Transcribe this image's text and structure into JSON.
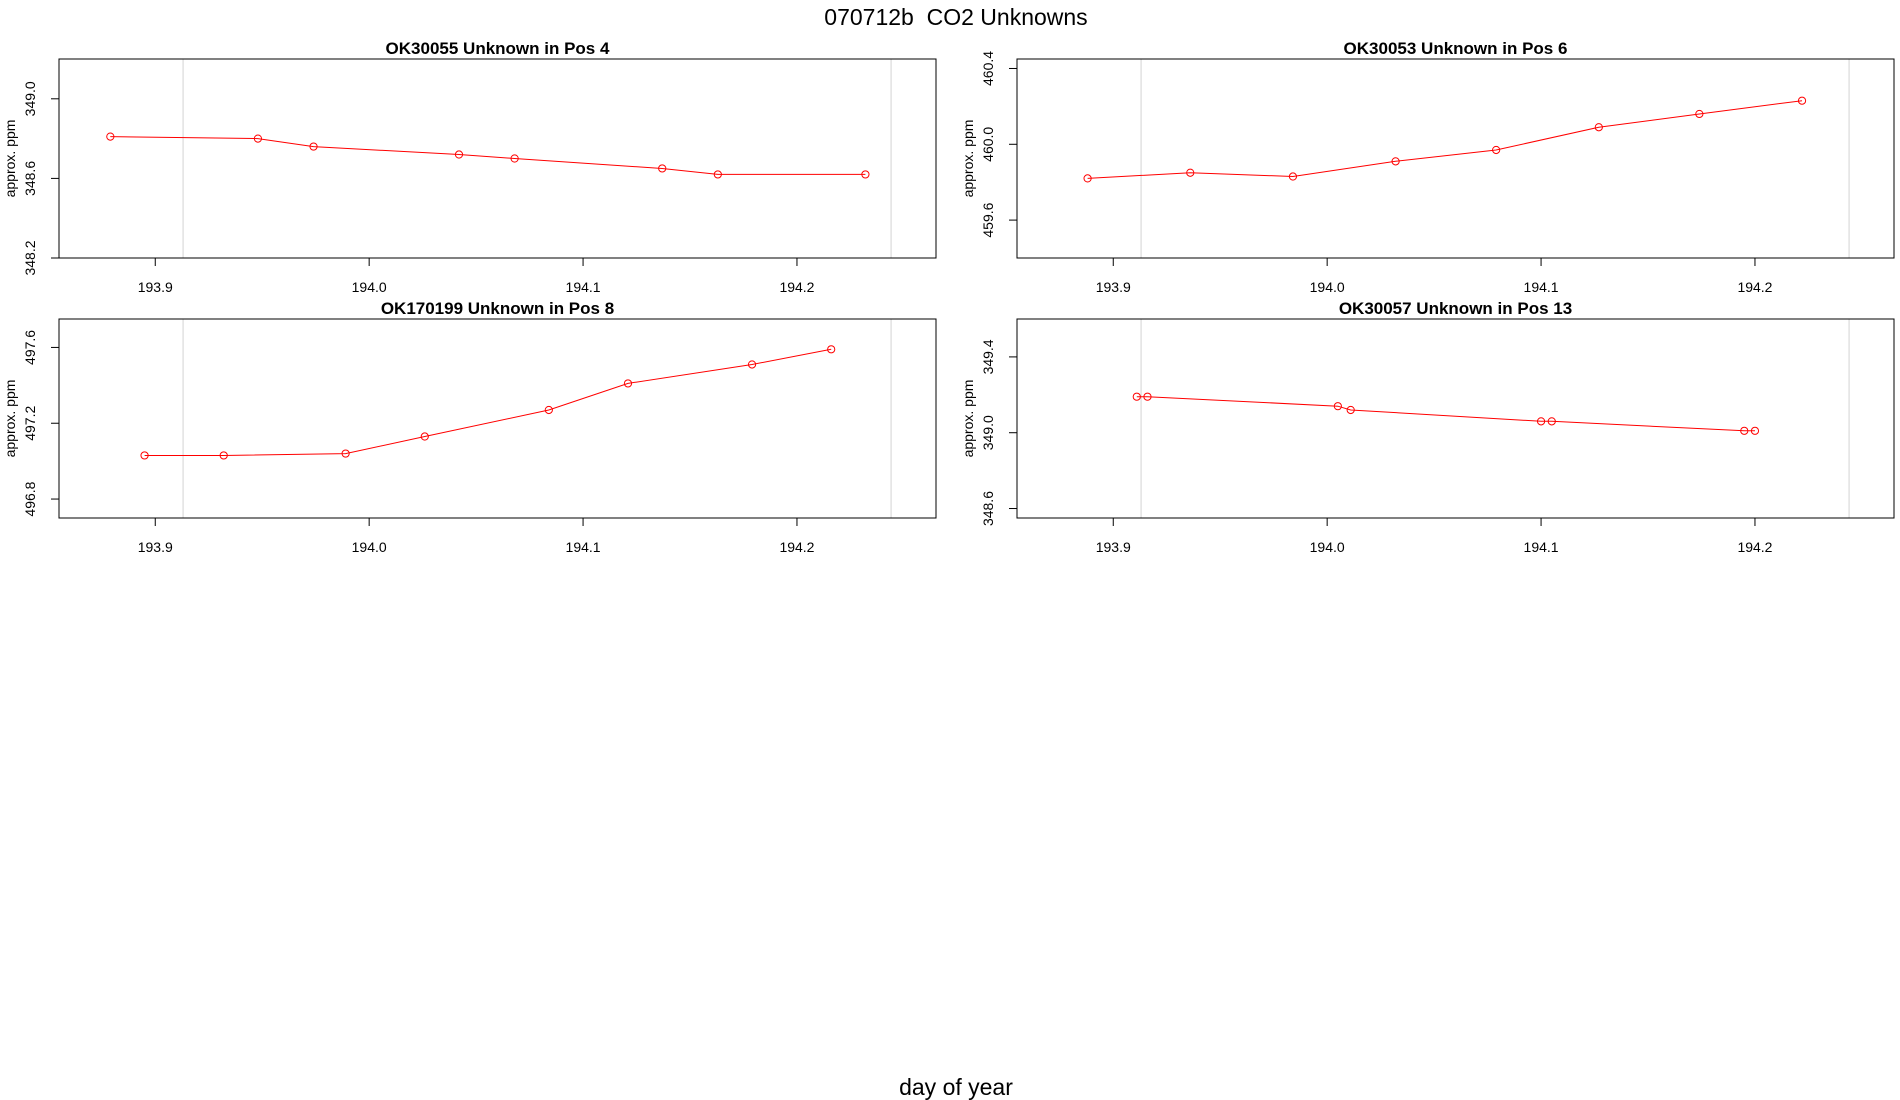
{
  "figure": {
    "title": "070712b  CO2 Unknowns",
    "xlabel": "day of year"
  },
  "colors": {
    "series": "#ff0000",
    "frame": "#000000",
    "vline": "#d3d3d3"
  },
  "chart_data": [
    {
      "type": "line",
      "title": "OK30055    Unknown in Pos 4",
      "ylabel": "approx. ppm",
      "xlim": [
        193.855,
        194.265
      ],
      "ylim": [
        348.2,
        349.2
      ],
      "xticks": [
        "193.9",
        "194.0",
        "194.1",
        "194.2"
      ],
      "yticks": [
        "348.2",
        "348.6",
        "349.0"
      ],
      "vlines": [
        193.913,
        194.244
      ],
      "grid": false,
      "series": [
        {
          "x": [
            193.879,
            193.948,
            193.974,
            194.042,
            194.068,
            194.137,
            194.163,
            194.232
          ],
          "y": [
            348.81,
            348.8,
            348.76,
            348.72,
            348.7,
            348.65,
            348.62,
            348.62
          ]
        }
      ]
    },
    {
      "type": "line",
      "title": "OK30053    Unknown in Pos 6",
      "ylabel": "approx. ppm",
      "xlim": [
        193.855,
        194.265
      ],
      "ylim": [
        459.4,
        460.45
      ],
      "xticks": [
        "193.9",
        "194.0",
        "194.1",
        "194.2"
      ],
      "yticks": [
        "459.6",
        "460.0",
        "460.4"
      ],
      "vlines": [
        193.913,
        194.244
      ],
      "grid": false,
      "series": [
        {
          "x": [
            193.888,
            193.936,
            193.984,
            194.032,
            194.079,
            194.127,
            194.174,
            194.222
          ],
          "y": [
            459.82,
            459.85,
            459.83,
            459.91,
            459.97,
            460.09,
            460.16,
            460.23
          ]
        }
      ]
    },
    {
      "type": "line",
      "title": "OK170199    Unknown in Pos 8",
      "ylabel": "approx. ppm",
      "xlim": [
        193.855,
        194.265
      ],
      "ylim": [
        496.7,
        497.75
      ],
      "xticks": [
        "193.9",
        "194.0",
        "194.1",
        "194.2"
      ],
      "yticks": [
        "496.8",
        "497.2",
        "497.6"
      ],
      "vlines": [
        193.913,
        194.244
      ],
      "grid": false,
      "series": [
        {
          "x": [
            193.895,
            193.932,
            193.989,
            194.026,
            194.084,
            194.121,
            194.179,
            194.216
          ],
          "y": [
            497.03,
            497.03,
            497.04,
            497.13,
            497.27,
            497.41,
            497.51,
            497.59
          ]
        }
      ]
    },
    {
      "type": "line",
      "title": "OK30057    Unknown in Pos 13",
      "ylabel": "approx. ppm",
      "xlim": [
        193.855,
        194.265
      ],
      "ylim": [
        348.55,
        349.6
      ],
      "xticks": [
        "193.9",
        "194.0",
        "194.1",
        "194.2"
      ],
      "yticks": [
        "348.6",
        "349.0",
        "349.4"
      ],
      "vlines": [
        193.913,
        194.244
      ],
      "grid": false,
      "series": [
        {
          "x": [
            193.911,
            193.916,
            194.005,
            194.011,
            194.1,
            194.105,
            194.195,
            194.2
          ],
          "y": [
            349.19,
            349.19,
            349.14,
            349.12,
            349.06,
            349.06,
            349.01,
            349.01
          ]
        }
      ]
    }
  ]
}
